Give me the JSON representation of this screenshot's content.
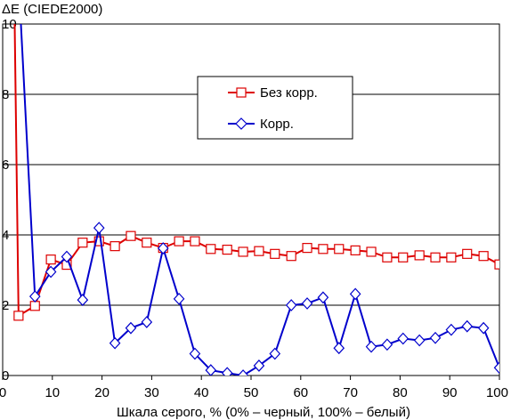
{
  "chart_data": {
    "type": "line",
    "title": "",
    "ylabel": "ΔE (CIEDE2000)",
    "xlabel": "Шкала серого, % (0% – черный, 100% – белый)",
    "xlim": [
      0,
      100
    ],
    "ylim": [
      0,
      10
    ],
    "xticks": [
      "0",
      "10",
      "20",
      "30",
      "40",
      "50",
      "60",
      "70",
      "80",
      "90",
      "100"
    ],
    "yticks": [
      "0",
      "2",
      "4",
      "6",
      "8",
      "10"
    ],
    "grid": "horizontal",
    "legend_position": "upper-center",
    "series": [
      {
        "name": "Без корр.",
        "color": "#dd0000",
        "marker": "square",
        "x": [
          2.4,
          3.2,
          6.5,
          9.7,
          12.9,
          16.1,
          19.4,
          22.6,
          25.8,
          29.0,
          32.3,
          35.5,
          38.7,
          41.9,
          45.2,
          48.4,
          51.6,
          54.8,
          58.1,
          61.3,
          64.5,
          67.7,
          71.0,
          74.2,
          77.4,
          80.6,
          83.9,
          87.1,
          90.3,
          93.5,
          96.8,
          100.0
        ],
        "y": [
          10.2,
          1.7,
          1.98,
          3.3,
          3.15,
          3.78,
          3.82,
          3.68,
          3.97,
          3.78,
          3.63,
          3.82,
          3.82,
          3.6,
          3.58,
          3.52,
          3.54,
          3.46,
          3.4,
          3.63,
          3.6,
          3.6,
          3.56,
          3.52,
          3.36,
          3.36,
          3.42,
          3.36,
          3.36,
          3.46,
          3.4,
          3.16
        ]
      },
      {
        "name": "Корр.",
        "color": "#0000cc",
        "marker": "diamond",
        "x": [
          3.6,
          6.5,
          9.7,
          12.9,
          16.1,
          19.4,
          22.6,
          25.8,
          29.0,
          32.3,
          35.5,
          38.7,
          41.9,
          45.2,
          48.4,
          51.6,
          54.8,
          58.1,
          61.3,
          64.5,
          67.7,
          71.0,
          74.2,
          77.4,
          80.6,
          83.9,
          87.1,
          90.3,
          93.5,
          96.8,
          100.0
        ],
        "y": [
          10.2,
          2.25,
          2.95,
          3.38,
          2.15,
          4.2,
          0.92,
          1.35,
          1.52,
          3.62,
          2.18,
          0.62,
          0.15,
          0.07,
          0.0,
          0.28,
          0.62,
          2.0,
          2.05,
          2.22,
          0.78,
          2.32,
          0.82,
          0.88,
          1.05,
          1.0,
          1.07,
          1.3,
          1.4,
          1.35,
          0.22
        ]
      }
    ]
  }
}
